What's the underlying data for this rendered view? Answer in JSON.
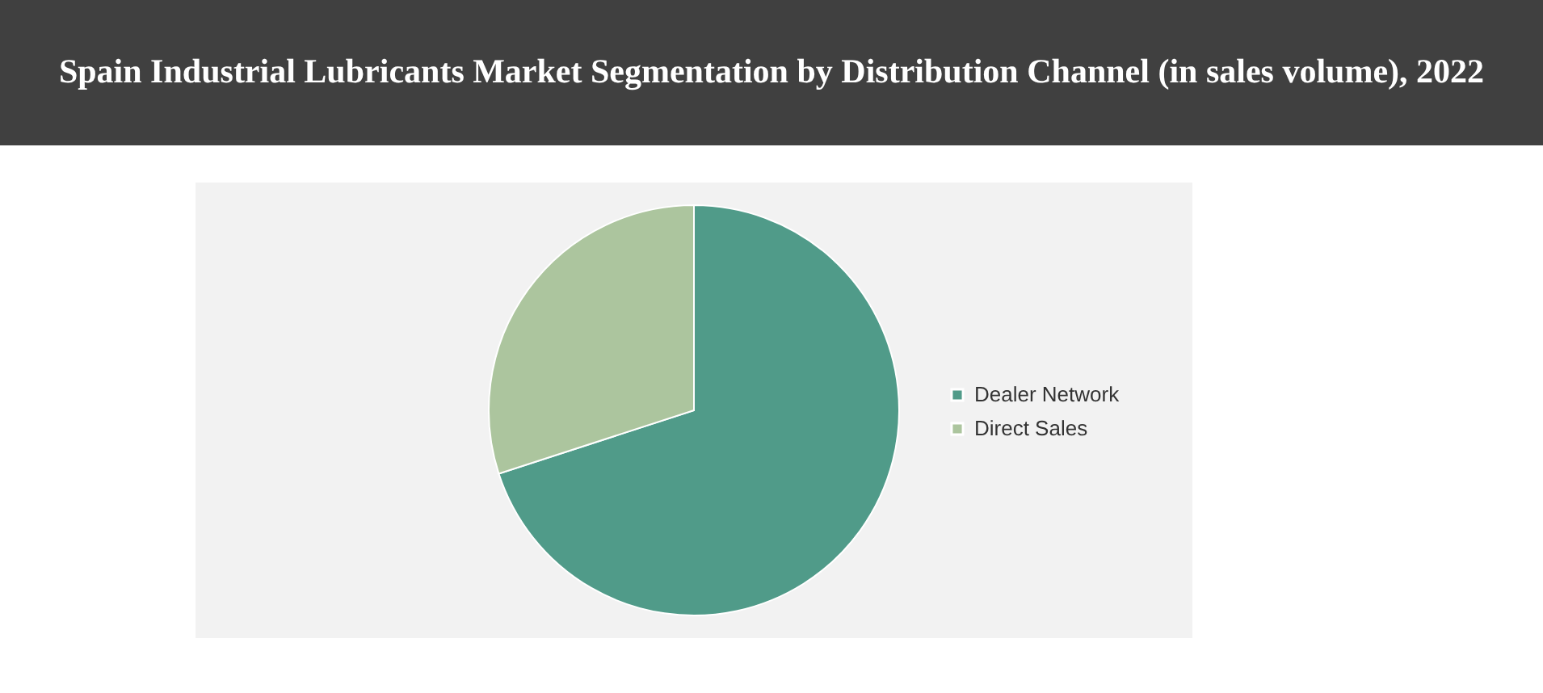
{
  "chart_data": {
    "type": "pie",
    "title": "Spain Industrial Lubricants Market Segmentation by Distribution Channel (in sales volume), 2022",
    "categories": [
      "Dealer Network",
      "Direct Sales"
    ],
    "values": [
      70,
      30
    ],
    "colors": [
      "#509b89",
      "#acc59e"
    ],
    "legend": "right"
  }
}
